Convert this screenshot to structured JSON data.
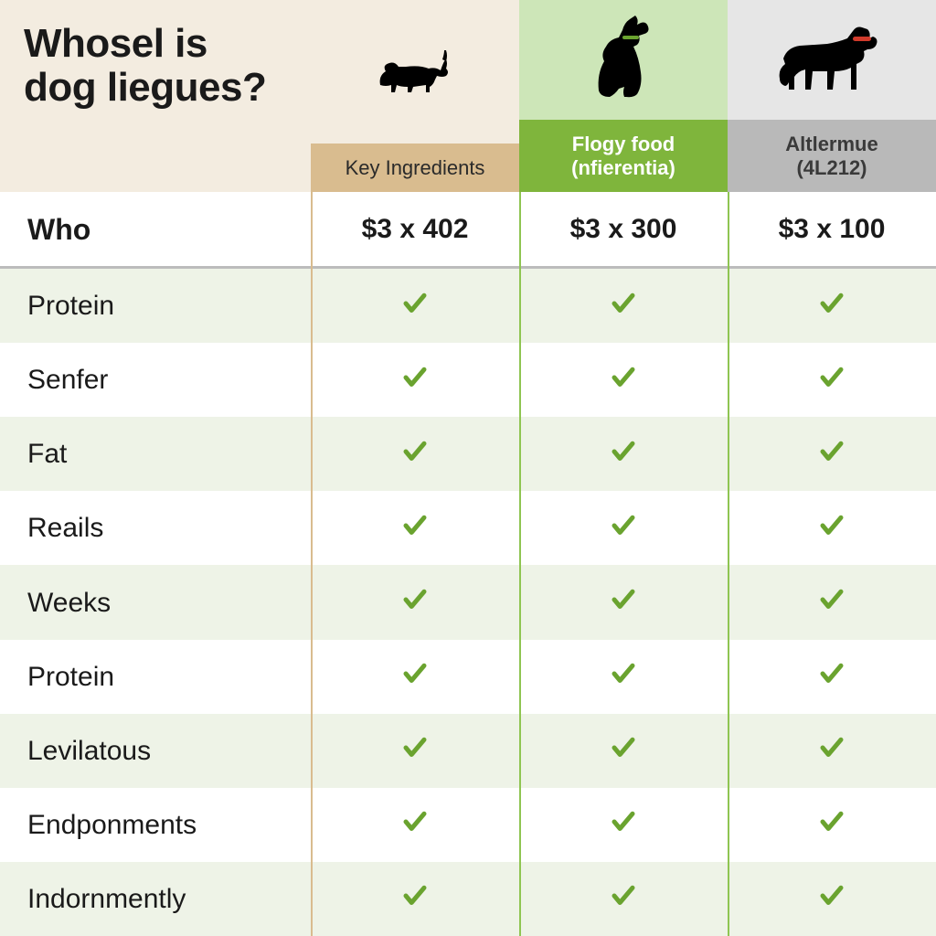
{
  "title": "Whosel is dog liegues?",
  "columns": [
    {
      "label": "Key Ingredients",
      "price": "$3 x 402"
    },
    {
      "label": "Flogy food\n(nfierentia)",
      "price": "$3 x 300"
    },
    {
      "label": "Altlermue\n(4L212)",
      "price": "$3 x 100"
    }
  ],
  "price_row_label": "Who",
  "rows": [
    "Protein",
    "Senfer",
    "Fat",
    "Reails",
    "Weeks",
    "Protein",
    "Levilatous",
    "Endponments",
    "Indornmently"
  ],
  "colors": {
    "check": "#6aa32f",
    "title_bg": "#f3ece0",
    "col1_hdr": "#d9bc8f",
    "col2_hdr": "#7fb53c",
    "col3_hdr": "#b9b9b9",
    "alt_row": "#eef3e7"
  }
}
